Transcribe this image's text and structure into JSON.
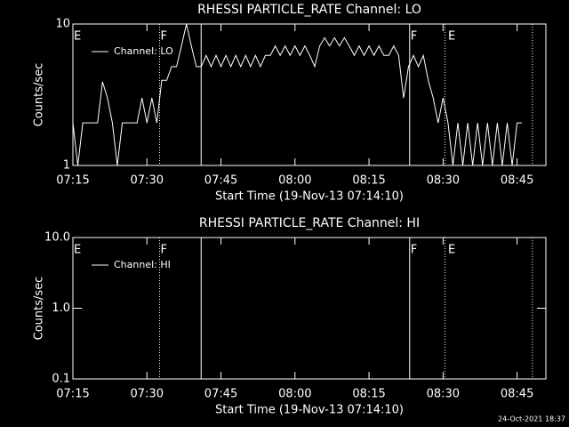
{
  "chart_data": [
    {
      "type": "line",
      "title": "RHESSI PARTICLE_RATE Channel: LO",
      "xlabel": "Start Time (19-Nov-13 07:14:10)",
      "ylabel": "Counts/sec",
      "log_y": true,
      "legend": "top-left",
      "xlim": [
        "07:15",
        "08:50:50"
      ],
      "xticks": [
        "07:15",
        "07:30",
        "07:45",
        "08:00",
        "08:15",
        "08:30",
        "08:45"
      ],
      "ylim": [
        1,
        10
      ],
      "yticks": [
        1,
        10
      ],
      "vlines": [
        {
          "x": "07:32:34",
          "style": "dotted"
        },
        {
          "x": "07:40:59",
          "style": "solid"
        },
        {
          "x": "08:23:14",
          "style": "solid"
        },
        {
          "x": "08:30:22",
          "style": "dotted"
        },
        {
          "x": "08:48:07",
          "style": "dotted"
        }
      ],
      "flags": [
        {
          "text": "E",
          "x": "07:15"
        },
        {
          "text": "F",
          "x": "07:32:34"
        },
        {
          "text": "F",
          "x": "08:23:14"
        },
        {
          "text": "E",
          "x": "08:30:50"
        }
      ],
      "series": [
        {
          "name": "Channel: LO",
          "color": "#ffffff",
          "x": [
            "07:15",
            "07:16",
            "07:17",
            "07:18",
            "07:19",
            "07:20",
            "07:21",
            "07:22",
            "07:23",
            "07:24",
            "07:25",
            "07:26",
            "07:27",
            "07:28",
            "07:29",
            "07:30",
            "07:31",
            "07:32",
            "07:33",
            "07:34",
            "07:35",
            "07:36",
            "07:37",
            "07:38",
            "07:39",
            "07:40",
            "07:41",
            "07:42",
            "07:43",
            "07:44",
            "07:45",
            "07:46",
            "07:47",
            "07:48",
            "07:49",
            "07:50",
            "07:51",
            "07:52",
            "07:53",
            "07:54",
            "07:55",
            "07:56",
            "07:57",
            "07:58",
            "07:59",
            "08:00",
            "08:01",
            "08:02",
            "08:03",
            "08:04",
            "08:05",
            "08:06",
            "08:07",
            "08:08",
            "08:09",
            "08:10",
            "08:11",
            "08:12",
            "08:13",
            "08:14",
            "08:15",
            "08:16",
            "08:17",
            "08:18",
            "08:19",
            "08:20",
            "08:21",
            "08:22",
            "08:23",
            "08:24",
            "08:25",
            "08:26",
            "08:27",
            "08:28",
            "08:29",
            "08:30",
            "08:31",
            "08:32",
            "08:33",
            "08:34",
            "08:35",
            "08:36",
            "08:37",
            "08:38",
            "08:39",
            "08:40",
            "08:41",
            "08:42",
            "08:43",
            "08:44",
            "08:45",
            "08:46"
          ],
          "values": [
            2,
            1,
            2,
            2,
            2,
            2,
            3.9,
            3,
            2,
            1,
            2,
            2,
            2,
            2,
            3,
            2,
            3,
            2,
            4,
            4,
            5,
            5,
            7,
            10,
            7,
            5,
            5,
            6,
            5,
            6,
            5,
            6,
            5,
            6,
            5,
            6,
            5,
            6,
            5,
            6,
            6,
            7,
            6,
            7,
            6,
            7,
            6,
            7,
            6,
            5,
            7,
            8,
            7,
            8,
            7,
            8,
            7,
            6,
            7,
            6,
            7,
            6,
            7,
            6,
            6,
            7,
            6,
            3,
            5,
            6,
            5,
            6,
            4,
            3,
            2,
            3,
            2,
            1,
            2,
            1,
            2,
            1,
            2,
            1,
            2,
            1,
            2,
            1,
            2,
            1,
            2,
            2
          ]
        }
      ]
    },
    {
      "type": "line",
      "title": "RHESSI PARTICLE_RATE Channel: HI",
      "xlabel": "Start Time (19-Nov-13 07:14:10)",
      "ylabel": "Counts/sec",
      "log_y": true,
      "legend": "top-left",
      "xlim": [
        "07:15",
        "08:50:50"
      ],
      "xticks": [
        "07:15",
        "07:30",
        "07:45",
        "08:00",
        "08:15",
        "08:30",
        "08:45"
      ],
      "ylim": [
        0.1,
        10
      ],
      "yticks": [
        0.1,
        {
          "value": 1,
          "label": "1.0"
        },
        {
          "value": 10,
          "label": "10.0"
        }
      ],
      "vlines": [
        {
          "x": "07:32:34",
          "style": "dotted"
        },
        {
          "x": "07:40:59",
          "style": "solid"
        },
        {
          "x": "08:23:14",
          "style": "solid"
        },
        {
          "x": "08:30:22",
          "style": "dotted"
        },
        {
          "x": "08:48:07",
          "style": "dotted"
        }
      ],
      "flags": [
        {
          "text": "E",
          "x": "07:15"
        },
        {
          "text": "F",
          "x": "07:32:34"
        },
        {
          "text": "F",
          "x": "08:23:14"
        },
        {
          "text": "E",
          "x": "08:30:50"
        }
      ],
      "series": [
        {
          "name": "Channel: HI",
          "color": "#ffffff",
          "x": [],
          "values": []
        }
      ]
    }
  ],
  "footer": "24-Oct-2021 18:37"
}
